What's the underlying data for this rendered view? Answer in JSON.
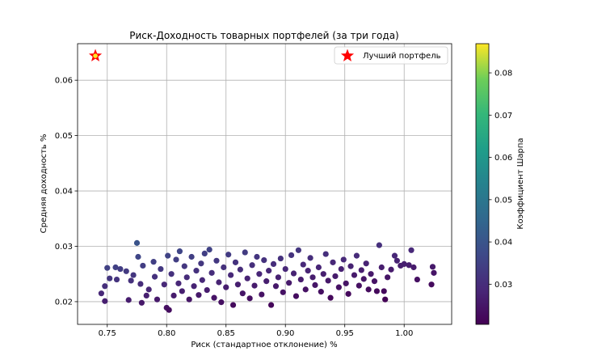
{
  "chart_data": {
    "type": "scatter",
    "title": "Риск-Доходность товарных портфелей (за три года)",
    "xlabel": "Риск (стандартное отклонение) %",
    "ylabel": "Средняя доходность %",
    "xlim": [
      0.725,
      1.04
    ],
    "ylim": [
      0.0159,
      0.0666
    ],
    "xticks": [
      0.75,
      0.8,
      0.85,
      0.9,
      0.95,
      1.0
    ],
    "xtick_labels": [
      "0.75",
      "0.80",
      "0.85",
      "0.90",
      "0.95",
      "1.00"
    ],
    "yticks": [
      0.02,
      0.03,
      0.04,
      0.05,
      0.06
    ],
    "ytick_labels": [
      "0.02",
      "0.03",
      "0.04",
      "0.05",
      "0.06"
    ],
    "grid": true,
    "legend": {
      "placement": "top-right",
      "entries": [
        "Лучший портфель"
      ]
    },
    "colorbar": {
      "label": "Коэффициент Шарпа",
      "colormap": "viridis",
      "range": [
        0.0205,
        0.0869
      ],
      "ticks": [
        0.03,
        0.04,
        0.05,
        0.06,
        0.07,
        0.08
      ],
      "tick_labels": [
        "0.03",
        "0.04",
        "0.05",
        "0.06",
        "0.07",
        "0.08"
      ]
    },
    "best_portfolio": {
      "x": 0.74,
      "y": 0.0644,
      "color": "#ff0000",
      "marker": "star"
    },
    "points": [
      [
        0.775,
        0.0306
      ],
      [
        0.745,
        0.0215
      ],
      [
        0.748,
        0.0201
      ],
      [
        0.748,
        0.0228
      ],
      [
        0.75,
        0.0261
      ],
      [
        0.752,
        0.0242
      ],
      [
        0.757,
        0.0262
      ],
      [
        0.758,
        0.024
      ],
      [
        0.761,
        0.0259
      ],
      [
        0.766,
        0.0255
      ],
      [
        0.768,
        0.0203
      ],
      [
        0.77,
        0.0238
      ],
      [
        0.772,
        0.0248
      ],
      [
        0.776,
        0.0281
      ],
      [
        0.778,
        0.0232
      ],
      [
        0.779,
        0.0198
      ],
      [
        0.78,
        0.0265
      ],
      [
        0.783,
        0.0211
      ],
      [
        0.785,
        0.0222
      ],
      [
        0.789,
        0.0272
      ],
      [
        0.79,
        0.0245
      ],
      [
        0.792,
        0.0204
      ],
      [
        0.795,
        0.0259
      ],
      [
        0.798,
        0.0231
      ],
      [
        0.8,
        0.0189
      ],
      [
        0.801,
        0.0283
      ],
      [
        0.802,
        0.0185
      ],
      [
        0.804,
        0.025
      ],
      [
        0.806,
        0.0211
      ],
      [
        0.808,
        0.0276
      ],
      [
        0.81,
        0.0233
      ],
      [
        0.811,
        0.0291
      ],
      [
        0.813,
        0.0219
      ],
      [
        0.815,
        0.0264
      ],
      [
        0.817,
        0.0244
      ],
      [
        0.819,
        0.0204
      ],
      [
        0.821,
        0.0281
      ],
      [
        0.823,
        0.0228
      ],
      [
        0.825,
        0.0256
      ],
      [
        0.827,
        0.0212
      ],
      [
        0.829,
        0.0269
      ],
      [
        0.83,
        0.0239
      ],
      [
        0.832,
        0.0287
      ],
      [
        0.834,
        0.0221
      ],
      [
        0.836,
        0.0294
      ],
      [
        0.838,
        0.0252
      ],
      [
        0.84,
        0.0207
      ],
      [
        0.842,
        0.0274
      ],
      [
        0.844,
        0.0235
      ],
      [
        0.846,
        0.0199
      ],
      [
        0.848,
        0.0262
      ],
      [
        0.85,
        0.0226
      ],
      [
        0.852,
        0.0285
      ],
      [
        0.854,
        0.0248
      ],
      [
        0.856,
        0.0194
      ],
      [
        0.858,
        0.0271
      ],
      [
        0.86,
        0.0231
      ],
      [
        0.862,
        0.0258
      ],
      [
        0.864,
        0.0215
      ],
      [
        0.866,
        0.0289
      ],
      [
        0.868,
        0.0242
      ],
      [
        0.87,
        0.0206
      ],
      [
        0.872,
        0.0266
      ],
      [
        0.874,
        0.0229
      ],
      [
        0.876,
        0.0281
      ],
      [
        0.878,
        0.025
      ],
      [
        0.88,
        0.0213
      ],
      [
        0.882,
        0.0275
      ],
      [
        0.884,
        0.0237
      ],
      [
        0.886,
        0.0256
      ],
      [
        0.888,
        0.0194
      ],
      [
        0.89,
        0.0268
      ],
      [
        0.892,
        0.0228
      ],
      [
        0.894,
        0.0244
      ],
      [
        0.896,
        0.0278
      ],
      [
        0.898,
        0.0217
      ],
      [
        0.9,
        0.0259
      ],
      [
        0.903,
        0.0234
      ],
      [
        0.905,
        0.0284
      ],
      [
        0.907,
        0.0251
      ],
      [
        0.909,
        0.021
      ],
      [
        0.911,
        0.0293
      ],
      [
        0.913,
        0.024
      ],
      [
        0.915,
        0.0267
      ],
      [
        0.917,
        0.0222
      ],
      [
        0.919,
        0.0256
      ],
      [
        0.921,
        0.0279
      ],
      [
        0.923,
        0.0244
      ],
      [
        0.925,
        0.023
      ],
      [
        0.928,
        0.0262
      ],
      [
        0.93,
        0.0218
      ],
      [
        0.932,
        0.025
      ],
      [
        0.934,
        0.0286
      ],
      [
        0.936,
        0.0238
      ],
      [
        0.938,
        0.0207
      ],
      [
        0.94,
        0.0271
      ],
      [
        0.942,
        0.0246
      ],
      [
        0.945,
        0.0226
      ],
      [
        0.947,
        0.0259
      ],
      [
        0.949,
        0.0276
      ],
      [
        0.951,
        0.0233
      ],
      [
        0.953,
        0.0214
      ],
      [
        0.955,
        0.0264
      ],
      [
        0.958,
        0.0248
      ],
      [
        0.96,
        0.0283
      ],
      [
        0.962,
        0.0229
      ],
      [
        0.964,
        0.0257
      ],
      [
        0.966,
        0.0241
      ],
      [
        0.968,
        0.0269
      ],
      [
        0.97,
        0.0222
      ],
      [
        0.972,
        0.025
      ],
      [
        0.975,
        0.0237
      ],
      [
        0.977,
        0.0219
      ],
      [
        0.979,
        0.0302
      ],
      [
        0.981,
        0.0262
      ],
      [
        0.984,
        0.0204
      ],
      [
        0.986,
        0.0244
      ],
      [
        0.989,
        0.0258
      ],
      [
        0.992,
        0.0283
      ],
      [
        0.994,
        0.0274
      ],
      [
        0.997,
        0.0265
      ],
      [
        1.0,
        0.0268
      ],
      [
        1.004,
        0.0266
      ],
      [
        1.006,
        0.0293
      ],
      [
        1.008,
        0.0262
      ],
      [
        1.011,
        0.024
      ],
      [
        1.024,
        0.0263
      ],
      [
        1.025,
        0.0252
      ],
      [
        1.023,
        0.0231
      ],
      [
        0.983,
        0.0219
      ]
    ]
  }
}
